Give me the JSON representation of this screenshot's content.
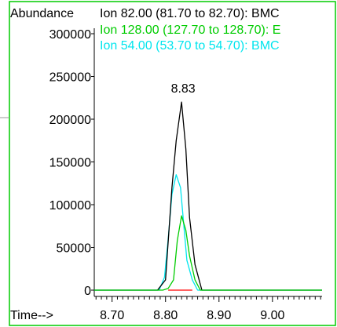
{
  "chart_data": {
    "type": "line",
    "ylabel": "Abundance",
    "xlabel": "Time-->",
    "xlim": [
      8.6667,
      9.0928
    ],
    "ylim": [
      0,
      300000
    ],
    "x_ticks": [
      "8.70",
      "8.80",
      "8.90",
      "9.00"
    ],
    "y_ticks": [
      "0",
      "50000",
      "100000",
      "150000",
      "200000",
      "250000",
      "300000"
    ],
    "grid": false,
    "legend_position": "top",
    "annotations": [
      {
        "text": "8.83",
        "x": 8.83,
        "y": 220000
      }
    ],
    "series": [
      {
        "name": "Ion  82.00 (81.70 to 82.70): BMC",
        "color": "#000000",
        "x": [
          8.6667,
          8.785,
          8.8,
          8.812,
          8.82,
          8.83,
          8.838,
          8.845,
          8.855,
          8.868,
          9.0928
        ],
        "y": [
          0,
          0,
          12000,
          120000,
          175000,
          220000,
          165000,
          85000,
          30000,
          0,
          0
        ]
      },
      {
        "name": "Ion 128.00 (127.70 to 128.70): E",
        "color": "#00cc00",
        "x": [
          8.6667,
          8.795,
          8.805,
          8.815,
          8.822,
          8.83,
          8.838,
          8.845,
          8.855,
          8.865,
          9.0928
        ],
        "y": [
          0,
          0,
          2000,
          12000,
          58000,
          87000,
          70000,
          40000,
          12000,
          0,
          0
        ]
      },
      {
        "name": "Ion  54.00 (53.70 to 54.70): BMC",
        "color": "#00e5ee",
        "x": [
          8.6667,
          8.788,
          8.798,
          8.805,
          8.812,
          8.82,
          8.828,
          8.84,
          8.85,
          8.86,
          9.0928
        ],
        "y": [
          0,
          0,
          15000,
          60000,
          112000,
          135000,
          120000,
          35000,
          12000,
          0,
          0
        ]
      },
      {
        "color": "#ff0000",
        "x": [
          8.805,
          8.85
        ],
        "y": [
          0,
          0
        ]
      }
    ]
  }
}
